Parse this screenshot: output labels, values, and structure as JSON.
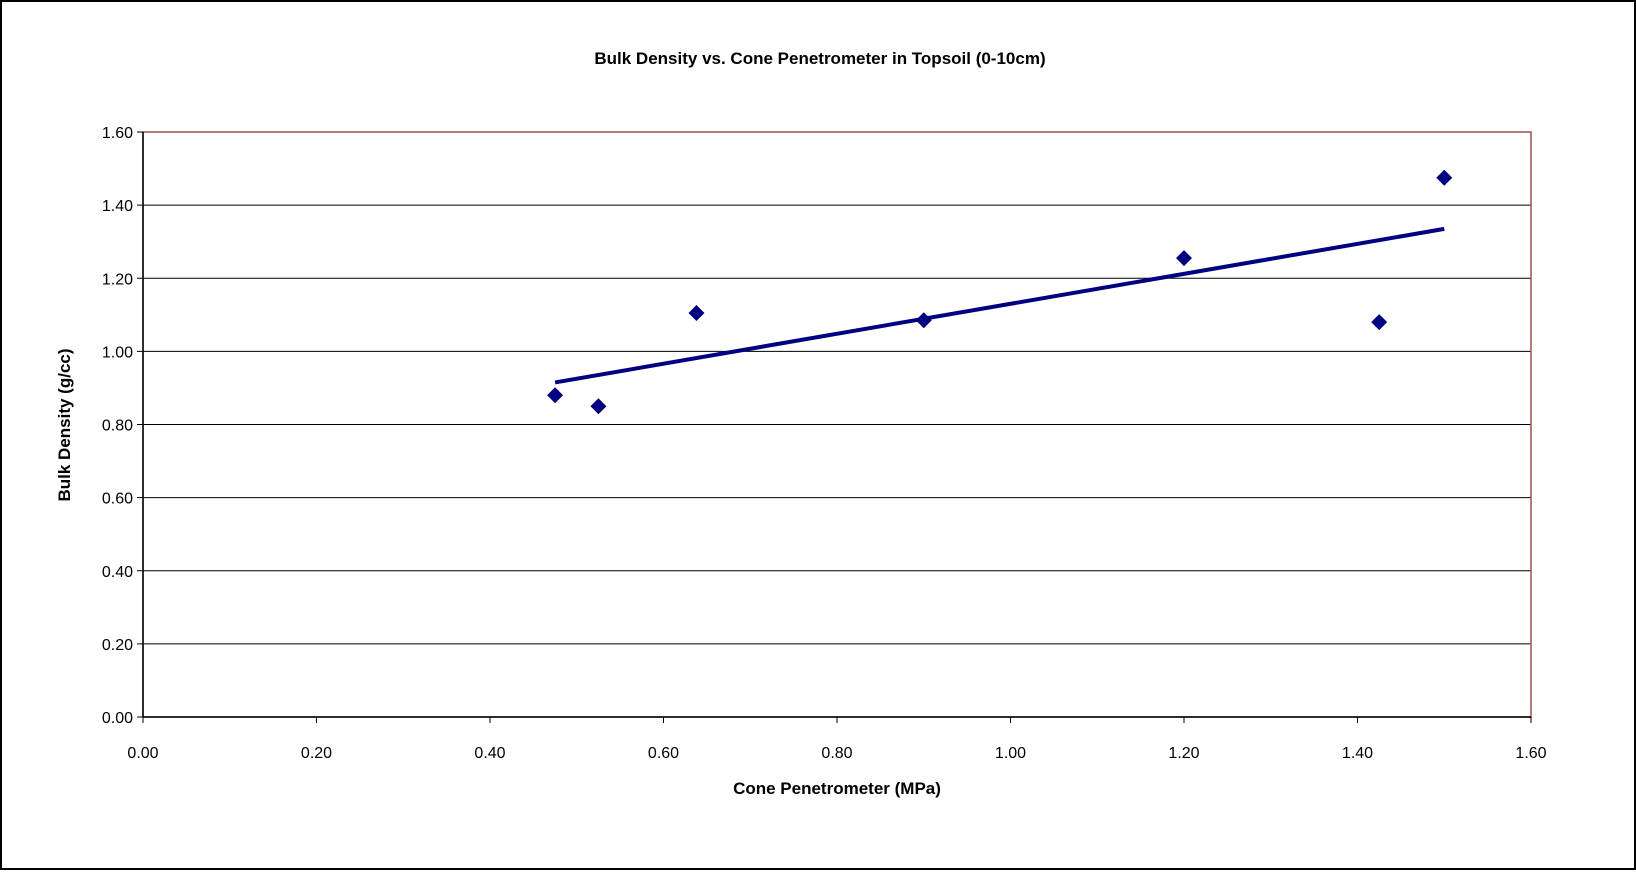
{
  "chart_data": {
    "type": "scatter",
    "title": "Bulk Density vs. Cone Penetrometer in Topsoil (0-10cm)",
    "xlabel": "Cone Penetrometer (MPa)",
    "ylabel": "Bulk Density (g/cc)",
    "xlim": [
      0,
      1.6
    ],
    "ylim": [
      0,
      1.6
    ],
    "x_ticks": [
      "0.00",
      "0.20",
      "0.40",
      "0.60",
      "0.80",
      "1.00",
      "1.20",
      "1.40",
      "1.60"
    ],
    "y_ticks": [
      "0.00",
      "0.20",
      "0.40",
      "0.60",
      "0.80",
      "1.00",
      "1.20",
      "1.40",
      "1.60"
    ],
    "grid": "horizontal",
    "legend": "none",
    "series": [
      {
        "points": [
          {
            "x": 0.475,
            "y": 0.88
          },
          {
            "x": 0.525,
            "y": 0.85
          },
          {
            "x": 0.638,
            "y": 1.105
          },
          {
            "x": 0.9,
            "y": 1.085
          },
          {
            "x": 1.2,
            "y": 1.255
          },
          {
            "x": 1.425,
            "y": 1.08
          },
          {
            "x": 1.5,
            "y": 1.475
          }
        ],
        "marker": "diamond",
        "color": "#000080"
      }
    ],
    "trendline": {
      "type": "linear",
      "from": {
        "x": 0.475,
        "y": 0.915
      },
      "to": {
        "x": 1.5,
        "y": 1.335
      },
      "color": "#000080"
    },
    "colors": {
      "plot_border": "#a05050",
      "gridline": "#000000",
      "marker": "#000080"
    }
  }
}
